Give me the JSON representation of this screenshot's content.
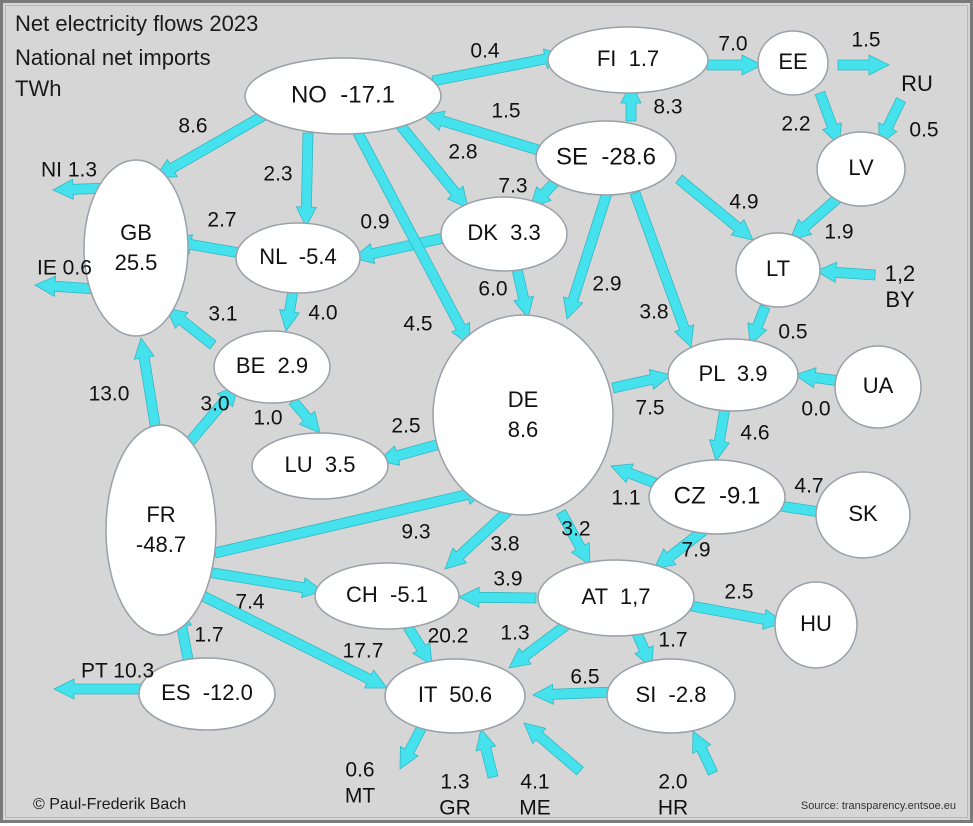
{
  "title": "Net electricity flows 2023",
  "subtitle": "National net imports",
  "unit": "TWh",
  "copyright": "© Paul-Frederik Bach",
  "source": "Source: transparency.entsoe.eu",
  "colors": {
    "arrow": "#45e2ee",
    "node_fill": "#ffffff",
    "node_stroke": "#9aa0a8",
    "background": "#d6d6d6",
    "text": "#111111"
  },
  "nodes": [
    {
      "id": "NO",
      "name": "NO",
      "value": "-17.1"
    },
    {
      "id": "FI",
      "name": "FI",
      "value": "1.7"
    },
    {
      "id": "EE",
      "name": "EE",
      "value": ""
    },
    {
      "id": "SE",
      "name": "SE",
      "value": "-28.6"
    },
    {
      "id": "LV",
      "name": "LV",
      "value": ""
    },
    {
      "id": "GB",
      "name": "GB",
      "value": "25.5"
    },
    {
      "id": "NL",
      "name": "NL",
      "value": "-5.4"
    },
    {
      "id": "DK",
      "name": "DK",
      "value": "3.3"
    },
    {
      "id": "LT",
      "name": "LT",
      "value": ""
    },
    {
      "id": "BE",
      "name": "BE",
      "value": "2.9"
    },
    {
      "id": "DE",
      "name": "DE",
      "value": "8.6"
    },
    {
      "id": "PL",
      "name": "PL",
      "value": "3.9"
    },
    {
      "id": "UA",
      "name": "UA",
      "value": ""
    },
    {
      "id": "LU",
      "name": "LU",
      "value": "3.5"
    },
    {
      "id": "FR",
      "name": "FR",
      "value": "-48.7"
    },
    {
      "id": "CZ",
      "name": "CZ",
      "value": "-9.1"
    },
    {
      "id": "SK",
      "name": "SK",
      "value": ""
    },
    {
      "id": "CH",
      "name": "CH",
      "value": "-5.1"
    },
    {
      "id": "AT",
      "name": "AT",
      "value": "1,7"
    },
    {
      "id": "HU",
      "name": "HU",
      "value": ""
    },
    {
      "id": "ES",
      "name": "ES",
      "value": "-12.0"
    },
    {
      "id": "IT",
      "name": "IT",
      "value": "50.6"
    },
    {
      "id": "SI",
      "name": "SI",
      "value": "-2.8"
    }
  ],
  "external_labels": [
    {
      "id": "RU",
      "name": "RU",
      "value": ""
    },
    {
      "id": "BY",
      "name": "BY",
      "value": "1,2"
    },
    {
      "id": "NI",
      "name": "NI",
      "value": "1.3"
    },
    {
      "id": "IE",
      "name": "IE",
      "value": "0.6"
    },
    {
      "id": "PT",
      "name": "PT",
      "value": "10.3"
    },
    {
      "id": "MT",
      "name": "MT",
      "value": "0.6"
    },
    {
      "id": "GR",
      "name": "GR",
      "value": "1.3"
    },
    {
      "id": "ME",
      "name": "ME",
      "value": "4.1"
    },
    {
      "id": "HR",
      "name": "HR",
      "value": "2.0"
    }
  ],
  "flows": [
    {
      "from": "NO",
      "to": "FI",
      "value": "0.4"
    },
    {
      "from": "FI",
      "to": "EE",
      "value": "7.0"
    },
    {
      "from": "EE",
      "to": "RU",
      "value": "1.5"
    },
    {
      "from": "NO",
      "to": "GB",
      "value": "8.6"
    },
    {
      "from": "SE",
      "to": "NO",
      "value": "1.5"
    },
    {
      "from": "SE",
      "to": "FI",
      "value": "8.3"
    },
    {
      "from": "EE",
      "to": "LV",
      "value": "2.2"
    },
    {
      "from": "RU",
      "to": "LV",
      "value": "0.5"
    },
    {
      "from": "GB",
      "to": "NI",
      "value": ""
    },
    {
      "from": "NO",
      "to": "NL",
      "value": "2.3"
    },
    {
      "from": "NO",
      "to": "DK",
      "value": "2.8"
    },
    {
      "from": "SE",
      "to": "DK",
      "value": "7.3"
    },
    {
      "from": "SE",
      "to": "LT",
      "value": "4.9"
    },
    {
      "from": "NL",
      "to": "GB",
      "value": "2.7"
    },
    {
      "from": "DK",
      "to": "NL",
      "value": "0.9"
    },
    {
      "from": "LV",
      "to": "LT",
      "value": "1.9"
    },
    {
      "from": "BY",
      "to": "LT",
      "value": ""
    },
    {
      "from": "GB",
      "to": "IE",
      "value": ""
    },
    {
      "from": "DK",
      "to": "DE",
      "value": "6.0"
    },
    {
      "from": "SE",
      "to": "DE",
      "value": "2.9"
    },
    {
      "from": "NL",
      "to": "BE",
      "value": "4.0"
    },
    {
      "from": "BE",
      "to": "GB",
      "value": "3.1"
    },
    {
      "from": "SE",
      "to": "PL",
      "value": "3.8"
    },
    {
      "from": "NO",
      "to": "DE",
      "value": "4.5"
    },
    {
      "from": "LT",
      "to": "PL",
      "value": "0.5"
    },
    {
      "from": "DE",
      "to": "PL",
      "value": "7.5"
    },
    {
      "from": "UA",
      "to": "PL",
      "value": "0.0"
    },
    {
      "from": "FR",
      "to": "GB",
      "value": "13.0"
    },
    {
      "from": "FR",
      "to": "BE",
      "value": "3.0"
    },
    {
      "from": "BE",
      "to": "LU",
      "value": "1.0"
    },
    {
      "from": "DE",
      "to": "LU",
      "value": "2.5"
    },
    {
      "from": "PL",
      "to": "CZ",
      "value": "4.6"
    },
    {
      "from": "CZ",
      "to": "DE",
      "value": "1.1"
    },
    {
      "from": "CZ",
      "to": "SK",
      "value": "4.7"
    },
    {
      "from": "FR",
      "to": "DE",
      "value": "9.3"
    },
    {
      "from": "DE",
      "to": "CH",
      "value": "3.8"
    },
    {
      "from": "DE",
      "to": "AT",
      "value": "3.2"
    },
    {
      "from": "CZ",
      "to": "AT",
      "value": "7.9"
    },
    {
      "from": "AT",
      "to": "CH",
      "value": "3.9"
    },
    {
      "from": "FR",
      "to": "CH",
      "value": "7.4"
    },
    {
      "from": "AT",
      "to": "HU",
      "value": "2.5"
    },
    {
      "from": "CH",
      "to": "IT",
      "value": "20.2"
    },
    {
      "from": "AT",
      "to": "IT",
      "value": "1.3"
    },
    {
      "from": "ES",
      "to": "FR",
      "value": "1.7"
    },
    {
      "from": "AT",
      "to": "SI",
      "value": "1.7"
    },
    {
      "from": "FR",
      "to": "IT",
      "value": "17.7"
    },
    {
      "from": "SI",
      "to": "IT",
      "value": "6.5"
    },
    {
      "from": "ES",
      "to": "PT",
      "value": ""
    },
    {
      "from": "IT",
      "to": "MT",
      "value": ""
    },
    {
      "from": "GR",
      "to": "IT",
      "value": ""
    },
    {
      "from": "ME",
      "to": "IT",
      "value": ""
    },
    {
      "from": "HR",
      "to": "SI",
      "value": ""
    }
  ]
}
